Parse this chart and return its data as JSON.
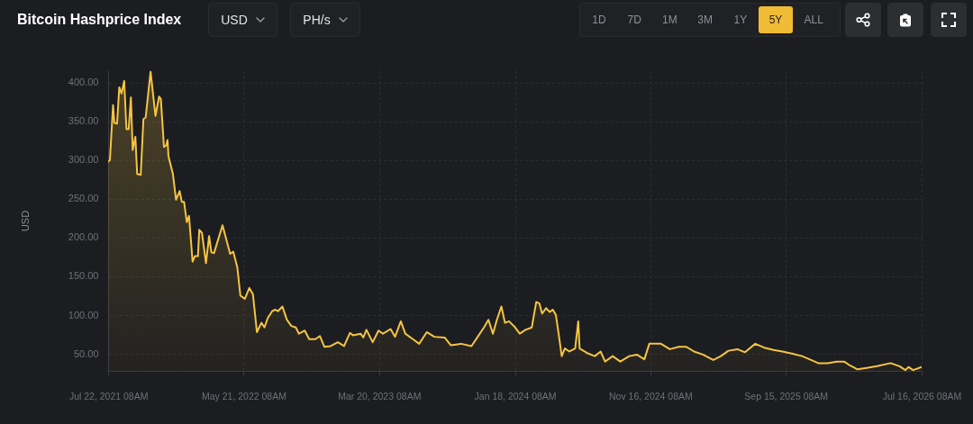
{
  "chart_data": {
    "type": "area",
    "title": "Bitcoin Hashprice Index",
    "ylabel": "USD",
    "annotations": [
      "USD",
      "PH/s",
      "1D",
      "7D",
      "1M",
      "3M",
      "1Y",
      "5Y",
      "ALL"
    ],
    "color": "#f5c443",
    "grid": true,
    "xlim": [
      "2021-07-22",
      "2026-07-16T08:00"
    ],
    "xticks": [
      {
        "value": "2021-07-22T08:00",
        "label": "Jul 22, 2021 08AM"
      },
      {
        "value": "2022-05-21T08:00",
        "label": "May 21, 2022 08AM"
      },
      {
        "value": "2023-03-20T08:00",
        "label": "Mar 20, 2023 08AM"
      },
      {
        "value": "2024-01-18T08:00",
        "label": "Jan 18, 2024 08AM"
      },
      {
        "value": "2024-11-16T08:00",
        "label": "Nov 16, 2024 08AM"
      },
      {
        "value": "2025-09-15T08:00",
        "label": "Sep 15, 2025 08AM"
      },
      {
        "value": "2026-07-16T08:00",
        "label": "Jul 16, 2026 08AM"
      }
    ],
    "ylim": [
      28,
      416
    ],
    "yticks": [
      {
        "value": 50,
        "label": "50.00"
      },
      {
        "value": 100,
        "label": "100.00"
      },
      {
        "value": 150,
        "label": "150.00"
      },
      {
        "value": 200,
        "label": "200.00"
      },
      {
        "value": 250,
        "label": "250.00"
      },
      {
        "value": 300,
        "label": "300.00"
      },
      {
        "value": 350,
        "label": "350.00"
      },
      {
        "value": 400,
        "label": "400.00"
      }
    ],
    "x": [
      "2021-07-22",
      "2021-07-26",
      "2021-08-02",
      "2021-08-05",
      "2021-08-11",
      "2021-08-16",
      "2021-08-21",
      "2021-08-27",
      "2021-09-01",
      "2021-09-06",
      "2021-09-11",
      "2021-09-15",
      "2021-09-21",
      "2021-09-25",
      "2021-10-03",
      "2021-10-09",
      "2021-10-14",
      "2021-10-25",
      "2021-11-05",
      "2021-11-13",
      "2021-11-17",
      "2021-11-24",
      "2021-11-29",
      "2021-12-02",
      "2021-12-04",
      "2021-12-14",
      "2021-12-21",
      "2021-12-29",
      "2022-01-03",
      "2022-01-08",
      "2022-01-14",
      "2022-01-19",
      "2022-01-27",
      "2022-02-01",
      "2022-02-08",
      "2022-02-11",
      "2022-02-17",
      "2022-02-26",
      "2022-03-05",
      "2022-03-10",
      "2022-03-16",
      "2022-04-04",
      "2022-04-21",
      "2022-04-28",
      "2022-05-07",
      "2022-05-14",
      "2022-05-24",
      "2022-06-03",
      "2022-06-11",
      "2022-06-20",
      "2022-06-30",
      "2022-07-07",
      "2022-07-14",
      "2022-07-24",
      "2022-07-31",
      "2022-08-06",
      "2022-08-16",
      "2022-08-26",
      "2022-09-05",
      "2022-09-15",
      "2022-09-22",
      "2022-10-05",
      "2022-10-15",
      "2022-10-29",
      "2022-11-08",
      "2022-11-18",
      "2022-12-02",
      "2022-12-18",
      "2023-01-01",
      "2023-01-14",
      "2023-01-21",
      "2023-02-07",
      "2023-02-13",
      "2023-02-20",
      "2023-03-06",
      "2023-03-19",
      "2023-03-29",
      "2023-04-15",
      "2023-04-25",
      "2023-05-08",
      "2023-05-18",
      "2023-06-04",
      "2023-06-18",
      "2023-07-05",
      "2023-07-22",
      "2023-08-14",
      "2023-08-28",
      "2023-09-20",
      "2023-10-13",
      "2023-10-27",
      "2023-11-10",
      "2023-11-20",
      "2023-11-30",
      "2023-12-10",
      "2023-12-19",
      "2023-12-27",
      "2024-01-05",
      "2024-01-19",
      "2024-01-29",
      "2024-02-11",
      "2024-02-25",
      "2024-03-06",
      "2024-03-13",
      "2024-03-19",
      "2024-03-28",
      "2024-04-05",
      "2024-04-12",
      "2024-04-19",
      "2024-04-25",
      "2024-05-02",
      "2024-05-09",
      "2024-05-19",
      "2024-06-01",
      "2024-06-08",
      "2024-06-11",
      "2024-06-28",
      "2024-07-15",
      "2024-07-28",
      "2024-08-07",
      "2024-08-24",
      "2024-09-10",
      "2024-09-30",
      "2024-10-17",
      "2024-11-03",
      "2024-11-14",
      "2024-12-10",
      "2024-12-30",
      "2025-01-19",
      "2025-02-05",
      "2025-02-22",
      "2025-03-14",
      "2025-04-06",
      "2025-04-23",
      "2025-05-10",
      "2025-05-30",
      "2025-06-16",
      "2025-07-09",
      "2025-07-29",
      "2025-08-19",
      "2025-09-08",
      "2025-10-01",
      "2025-10-22",
      "2025-11-11",
      "2025-11-27",
      "2025-12-18",
      "2026-01-07",
      "2026-01-24",
      "2026-02-06",
      "2026-02-23",
      "2026-03-18",
      "2026-04-07",
      "2026-05-08",
      "2026-05-28",
      "2026-06-10",
      "2026-06-17",
      "2026-06-27",
      "2026-07-16"
    ],
    "values": [
      298,
      300,
      371,
      348,
      347,
      394,
      386,
      402,
      340,
      340,
      381,
      313,
      330,
      282,
      281,
      353,
      355,
      414,
      357,
      382,
      379,
      317,
      319,
      326,
      305,
      282,
      249,
      260,
      246,
      246,
      220,
      228,
      169,
      176,
      176,
      210,
      206,
      167,
      202,
      181,
      180,
      216,
      179,
      182,
      162,
      125,
      121,
      135,
      127,
      78,
      90,
      84,
      96,
      105,
      107,
      105,
      111,
      94,
      86,
      84,
      76,
      80,
      69,
      69,
      73,
      59,
      60,
      65,
      60,
      77,
      74,
      76,
      71,
      81,
      65,
      80,
      76,
      82,
      72,
      92,
      76,
      69,
      63,
      78,
      72,
      71,
      61,
      63,
      60,
      72,
      84,
      94,
      76,
      96,
      111,
      90,
      92,
      84,
      76,
      81,
      84,
      117,
      115,
      102,
      109,
      104,
      107,
      100,
      76,
      47,
      57,
      53,
      57,
      92,
      57,
      51,
      47,
      53,
      40,
      47,
      40,
      47,
      49,
      43,
      63,
      63,
      56,
      59,
      59,
      53,
      49,
      42,
      47,
      54,
      56,
      52,
      63,
      58,
      55,
      53,
      50,
      47,
      42,
      38,
      38,
      40,
      40,
      35,
      30,
      32,
      34,
      38,
      34,
      29,
      33,
      29,
      33
    ]
  }
}
